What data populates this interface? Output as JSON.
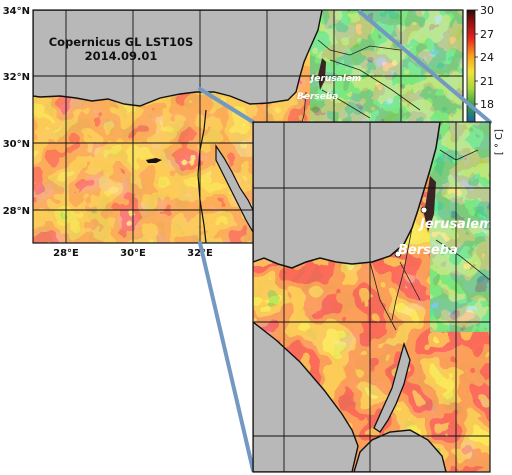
{
  "title": {
    "line1": "Copernicus GL LST10S",
    "line2": "2014.09.01"
  },
  "lat_ticks": [
    "34°N",
    "32°N",
    "30°N",
    "28°N"
  ],
  "lon_ticks": [
    "28°E",
    "30°E",
    "32°E"
  ],
  "cities": {
    "jerusalem": "Jerusalem",
    "berseba": "Berseba"
  },
  "colorbar": {
    "unit": "[ ° C]",
    "ticks": [
      "30",
      "27",
      "24",
      "21",
      "18"
    ],
    "min": 18,
    "max": 30,
    "colors": [
      "#1b5fa8",
      "#2e9e45",
      "#a8d83c",
      "#f4e23a",
      "#f79a1e",
      "#e6231c",
      "#8c1010",
      "#2a0a0a"
    ]
  },
  "colors": {
    "sea": "#b8b8b8",
    "zoom_line": "#7399c2",
    "grid": "#111111"
  }
}
